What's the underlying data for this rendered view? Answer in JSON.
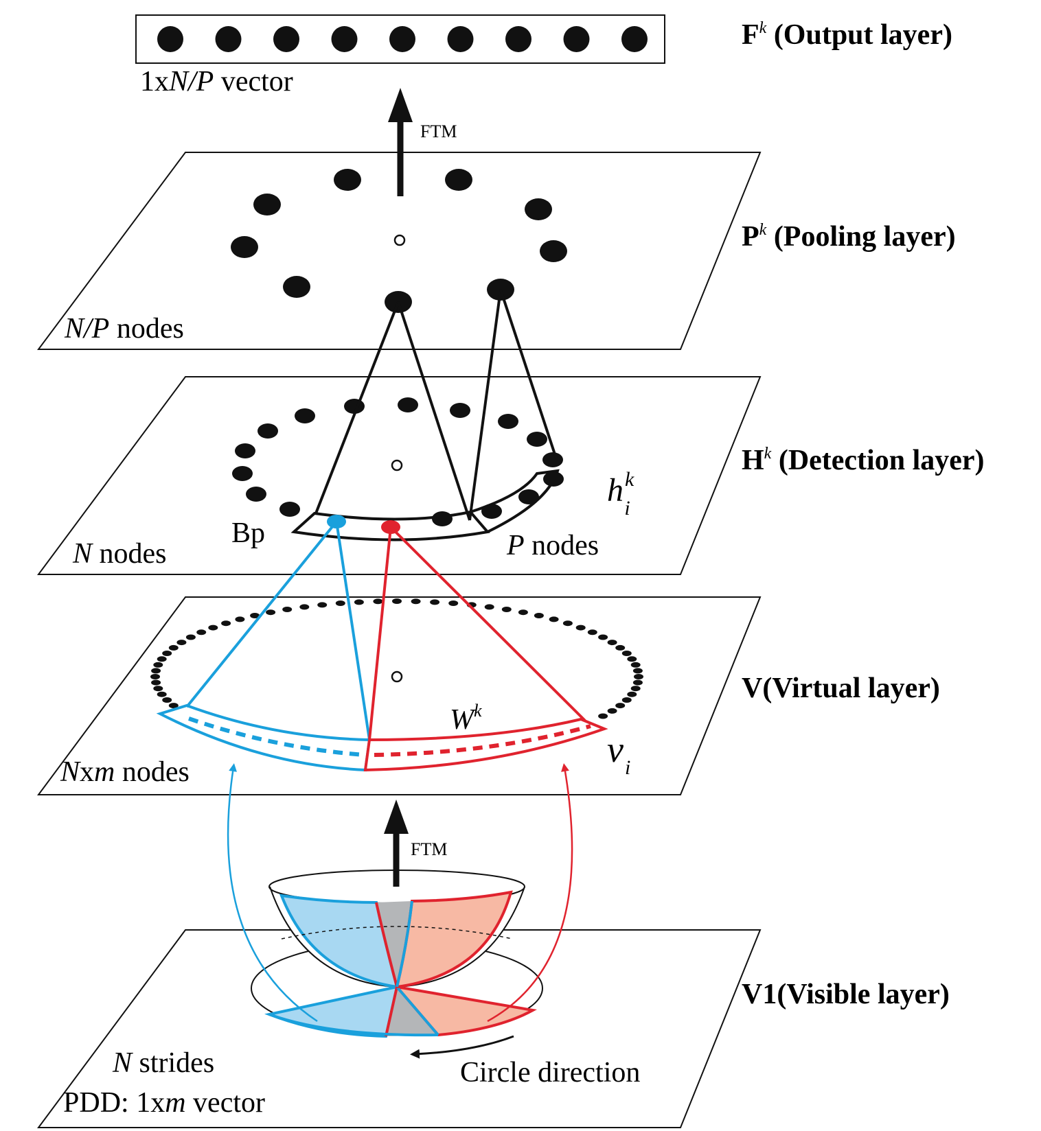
{
  "layers": {
    "output": {
      "title_main": "F",
      "title_sup": "k",
      "title_rest": " (Output layer)",
      "vector_label_prefix": "1x",
      "vector_label_var": "N/P",
      "vector_label_suffix": " vector",
      "node_count": 9
    },
    "pooling": {
      "title_main": "P",
      "title_sup": "k",
      "title_rest": " (Pooling layer)",
      "nodes_var": "N/P",
      "nodes_text": " nodes"
    },
    "detection": {
      "title_main": "H",
      "title_sup": "k",
      "title_rest": " (Detection layer)",
      "nodes_var": "N",
      "nodes_text": " nodes",
      "pool_var": "P",
      "pool_text": " nodes",
      "bp_label": "Bp",
      "h_var": "h",
      "h_sup": "k",
      "h_sub": "i"
    },
    "virtual": {
      "title": "V(Virtual layer)",
      "nodes_var_n": "N",
      "nodes_x": "x",
      "nodes_var_m": "m",
      "nodes_text": " nodes",
      "w_var": "W",
      "w_sup": "k",
      "v_var": "v",
      "v_sub": "i"
    },
    "visible": {
      "title": "V1(Visible layer)",
      "strides_var": "N",
      "strides_text": " strides",
      "pdd_text": "PDD: 1x",
      "pdd_var": "m",
      "pdd_suffix": " vector",
      "direction_label": "Circle direction"
    }
  },
  "arrows": {
    "ftm_top": "FTM",
    "ftm_bottom": "FTM"
  },
  "colors": {
    "blue": "#1aa0dc",
    "red": "#e0232e",
    "blue_fill": "#a8d8f2",
    "red_fill": "#f7b9a4",
    "gray_fill": "#b4b6b8",
    "black": "#1a1a1a"
  }
}
